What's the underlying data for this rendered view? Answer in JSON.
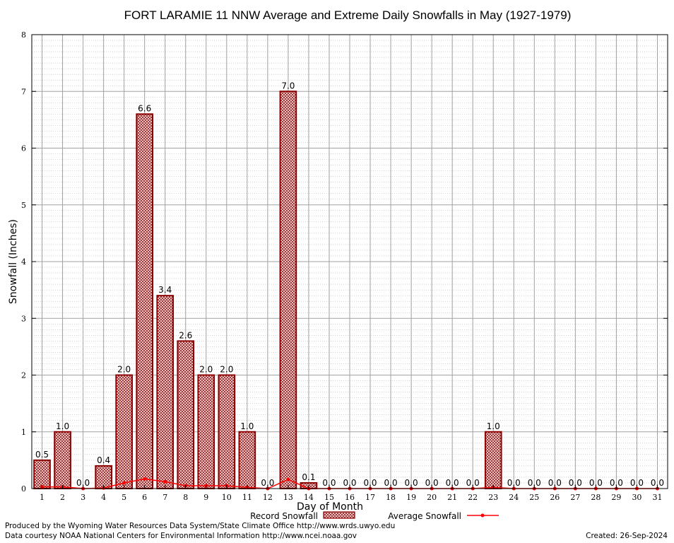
{
  "chart_data": {
    "type": "bar",
    "title": "FORT LARAMIE 11 NNW Average and Extreme Daily Snowfalls in May (1927-1979)",
    "xlabel": "Day of Month",
    "ylabel": "Snowfall (Inches)",
    "ylim": [
      0,
      8
    ],
    "yticks": [
      "0",
      "1",
      "2",
      "3",
      "4",
      "5",
      "6",
      "7",
      "8"
    ],
    "categories": [
      "1",
      "2",
      "3",
      "4",
      "5",
      "6",
      "7",
      "8",
      "9",
      "10",
      "11",
      "12",
      "13",
      "14",
      "15",
      "16",
      "17",
      "18",
      "19",
      "20",
      "21",
      "22",
      "23",
      "24",
      "25",
      "26",
      "27",
      "28",
      "29",
      "30",
      "31"
    ],
    "series": [
      {
        "name": "Record Snowfall",
        "values": [
          0.5,
          1.0,
          0.0,
          0.4,
          2.0,
          6.6,
          3.4,
          2.6,
          2.0,
          2.0,
          1.0,
          0.0,
          7.0,
          0.1,
          0.0,
          0.0,
          0.0,
          0.0,
          0.0,
          0.0,
          0.0,
          0.0,
          1.0,
          0.0,
          0.0,
          0.0,
          0.0,
          0.0,
          0.0,
          0.0,
          0.0
        ],
        "labels": [
          "0.5",
          "1.0",
          "0.0",
          "0.4",
          "2.0",
          "6.6",
          "3.4",
          "2.6",
          "2.0",
          "2.0",
          "1.0",
          "0.0",
          "7.0",
          "0.1",
          "0.0",
          "0.0",
          "0.0",
          "0.0",
          "0.0",
          "0.0",
          "0.0",
          "0.0",
          "1.0",
          "0.0",
          "0.0",
          "0.0",
          "0.0",
          "0.0",
          "0.0",
          "0.0",
          "0.0"
        ]
      },
      {
        "name": "Average Snowfall",
        "values": [
          0.03,
          0.03,
          0.0,
          0.01,
          0.1,
          0.17,
          0.12,
          0.05,
          0.05,
          0.05,
          0.02,
          0.0,
          0.16,
          0.0,
          0.0,
          0.0,
          0.0,
          0.0,
          0.0,
          0.0,
          0.0,
          0.0,
          0.02,
          0.0,
          0.0,
          0.0,
          0.0,
          0.0,
          0.0,
          0.0,
          0.0
        ]
      }
    ],
    "legend_position": "bottom-center",
    "grid": true
  },
  "colors": {
    "bar_stroke": "#8b0000",
    "bar_fill": "#e8c8c8",
    "avg_line": "#ff0000",
    "grid": "#a0a0a0"
  },
  "footer": {
    "credit_line1": "Produced by the Wyoming Water Resources Data System/State Climate Office http://www.wrds.uwyo.edu",
    "credit_line2": "Data courtesy NOAA National Centers for Environmental Information http://www.ncei.noaa.gov",
    "created": "Created:  26-Sep-2024"
  }
}
